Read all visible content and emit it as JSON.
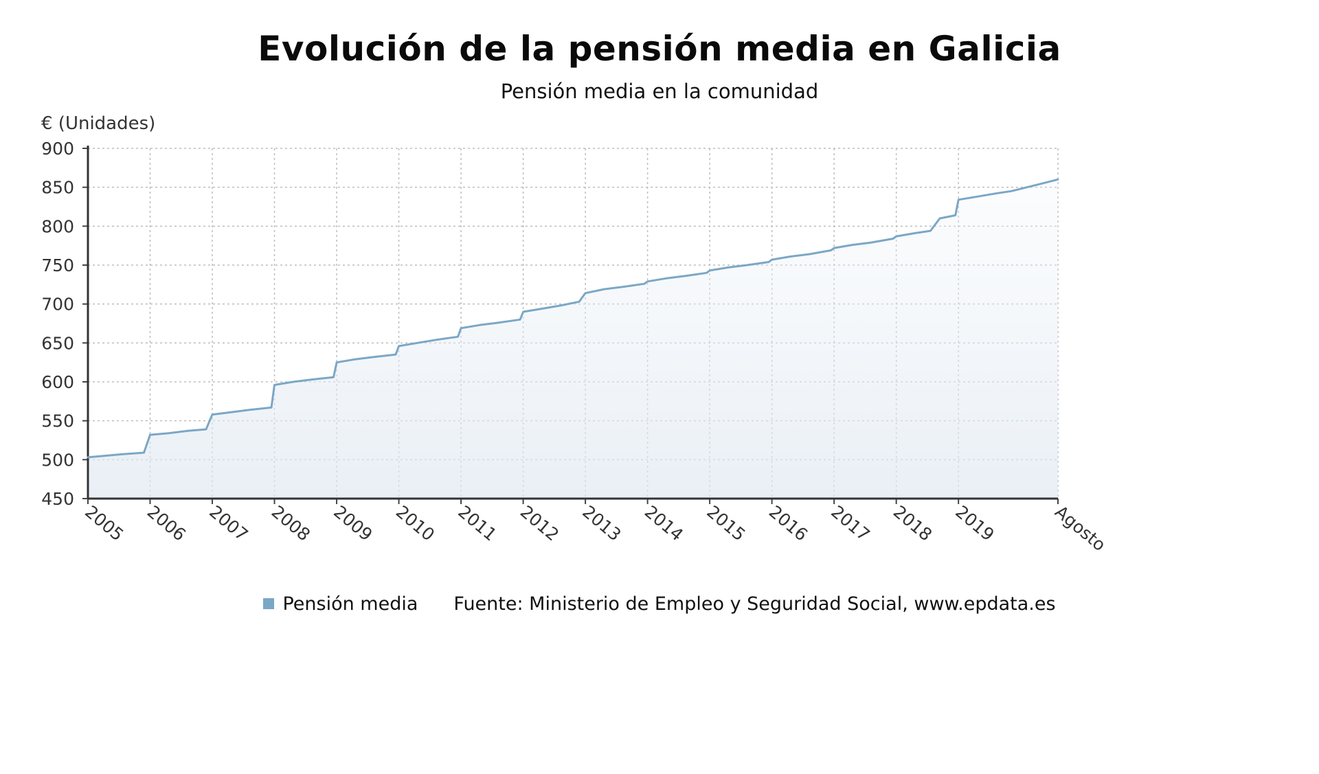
{
  "chart_data": {
    "type": "area",
    "title": "Evolución de la pensión media en Galicia",
    "subtitle": "Pensión media en la comunidad",
    "ylabel": "€ (Unidades)",
    "ylim": [
      450,
      900
    ],
    "yticks": [
      450,
      500,
      550,
      600,
      650,
      700,
      750,
      800,
      850,
      900
    ],
    "grid": true,
    "x_tick_labels": [
      "2005",
      "2006",
      "2007",
      "2008",
      "2009",
      "2010",
      "2011",
      "2012",
      "2013",
      "2014",
      "2015",
      "2016",
      "2017",
      "2018",
      "2019",
      "Agosto"
    ],
    "x_range": [
      2005.0,
      2020.6
    ],
    "series": [
      {
        "name": "Pensión media",
        "color": "#7ba7c6",
        "x": [
          2005.0,
          2005.55,
          2005.9,
          2006.0,
          2006.3,
          2006.6,
          2006.9,
          2007.0,
          2007.3,
          2007.6,
          2007.95,
          2008.0,
          2008.3,
          2008.6,
          2008.95,
          2009.0,
          2009.3,
          2009.6,
          2009.95,
          2010.0,
          2010.3,
          2010.6,
          2010.95,
          2011.0,
          2011.3,
          2011.6,
          2011.95,
          2012.0,
          2012.3,
          2012.6,
          2012.9,
          2013.0,
          2013.3,
          2013.6,
          2013.95,
          2014.0,
          2014.3,
          2014.6,
          2014.95,
          2015.0,
          2015.3,
          2015.6,
          2015.95,
          2016.0,
          2016.3,
          2016.6,
          2016.95,
          2017.0,
          2017.3,
          2017.6,
          2017.95,
          2018.0,
          2018.3,
          2018.55,
          2018.7,
          2018.95,
          2019.0,
          2019.3,
          2019.6,
          2019.85,
          2020.0,
          2020.4,
          2020.6
        ],
        "values": [
          503,
          507,
          509,
          532,
          534,
          537,
          539,
          558,
          561,
          564,
          567,
          596,
          600,
          603,
          606,
          625,
          629,
          632,
          635,
          646,
          650,
          654,
          658,
          669,
          673,
          676,
          680,
          690,
          694,
          698,
          703,
          714,
          719,
          722,
          726,
          729,
          733,
          736,
          740,
          743,
          747,
          750,
          754,
          757,
          761,
          764,
          769,
          772,
          776,
          779,
          784,
          787,
          791,
          794,
          810,
          814,
          834,
          838,
          842,
          845,
          848,
          856,
          860
        ]
      }
    ]
  },
  "legend": {
    "series_label": "Pensión media",
    "source": "Fuente: Ministerio de Empleo y Seguridad Social, www.epdata.es"
  }
}
